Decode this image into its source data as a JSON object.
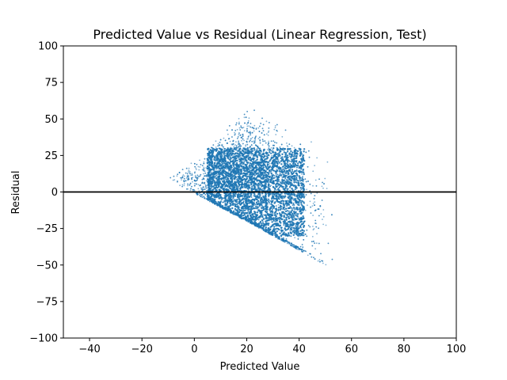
{
  "chart_data": {
    "type": "scatter",
    "title": "Predicted Value vs Residual (Linear Regression, Test)",
    "xlabel": "Predicted Value",
    "ylabel": "Residual",
    "xlim": [
      -50,
      100
    ],
    "ylim": [
      -100,
      100
    ],
    "xticks": [
      -40,
      -20,
      0,
      20,
      40,
      60,
      80,
      100
    ],
    "yticks": [
      -100,
      -75,
      -50,
      -25,
      0,
      25,
      50,
      75,
      100
    ],
    "xtick_labels": [
      "−40",
      "−20",
      "0",
      "20",
      "40",
      "60",
      "80",
      "100"
    ],
    "ytick_labels": [
      "−100",
      "−75",
      "−50",
      "−25",
      "0",
      "25",
      "50",
      "75",
      "100"
    ],
    "reference_line": {
      "y": 0,
      "color": "#000000"
    },
    "point_color": "#1f77b4",
    "grid": false,
    "approx_point_cloud": {
      "x_range": [
        -10,
        53
      ],
      "lower_boundary": [
        [
          -10,
          9
        ],
        [
          0,
          -1
        ],
        [
          20,
          -20
        ],
        [
          40,
          -40
        ],
        [
          52,
          -52
        ]
      ],
      "upper_boundary": [
        [
          -10,
          9
        ],
        [
          5,
          30
        ],
        [
          20,
          60
        ],
        [
          40,
          40
        ],
        [
          52,
          38
        ]
      ],
      "dense_core_x": [
        5,
        42
      ],
      "dense_core_y": [
        -30,
        30
      ]
    }
  }
}
